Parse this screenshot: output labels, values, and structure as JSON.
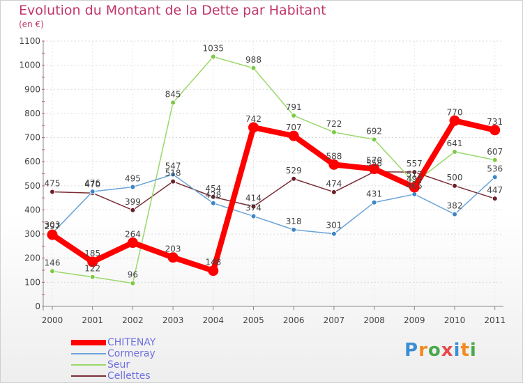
{
  "header": {
    "title": "Evolution du Montant de la Dette par Habitant",
    "unit": "(en €)"
  },
  "logo": {
    "text": "Proxiti",
    "colors": [
      "#3a8fd4",
      "#f28a1e",
      "#4aa84a",
      "#e64a4a",
      "#3a8fd4",
      "#f28a1e",
      "#4aa84a"
    ]
  },
  "chart_data": {
    "type": "line",
    "title": "Evolution du Montant de la Dette par Habitant",
    "subtitle": "(en €)",
    "xlabel": "",
    "ylabel": "",
    "x": [
      "2000",
      "2001",
      "2002",
      "2003",
      "2004",
      "2005",
      "2006",
      "2007",
      "2008",
      "2009",
      "2010",
      "2011"
    ],
    "ylim": [
      0,
      1100
    ],
    "yticks": [
      0,
      100,
      200,
      300,
      400,
      500,
      600,
      700,
      800,
      900,
      1000,
      1100
    ],
    "grid": true,
    "legend_position": "bottom-left",
    "series": [
      {
        "name": "CHITENAY",
        "color": "#ff0000",
        "values": [
          297,
          185,
          264,
          203,
          148,
          742,
          707,
          588,
          570,
          494,
          770,
          731
        ]
      },
      {
        "name": "Cormeray",
        "color": "#5b9bd5",
        "values": [
          303,
          476,
          495,
          547,
          428,
          374,
          318,
          301,
          431,
          465,
          382,
          536
        ]
      },
      {
        "name": "Seur",
        "color": "#8bd35a",
        "values": [
          146,
          122,
          96,
          845,
          1035,
          988,
          791,
          722,
          692,
          512,
          641,
          607
        ]
      },
      {
        "name": "Cellettes",
        "color": "#7a2e36",
        "values": [
          475,
          470,
          399,
          518,
          454,
          414,
          529,
          474,
          558,
          557,
          500,
          447
        ]
      }
    ]
  }
}
